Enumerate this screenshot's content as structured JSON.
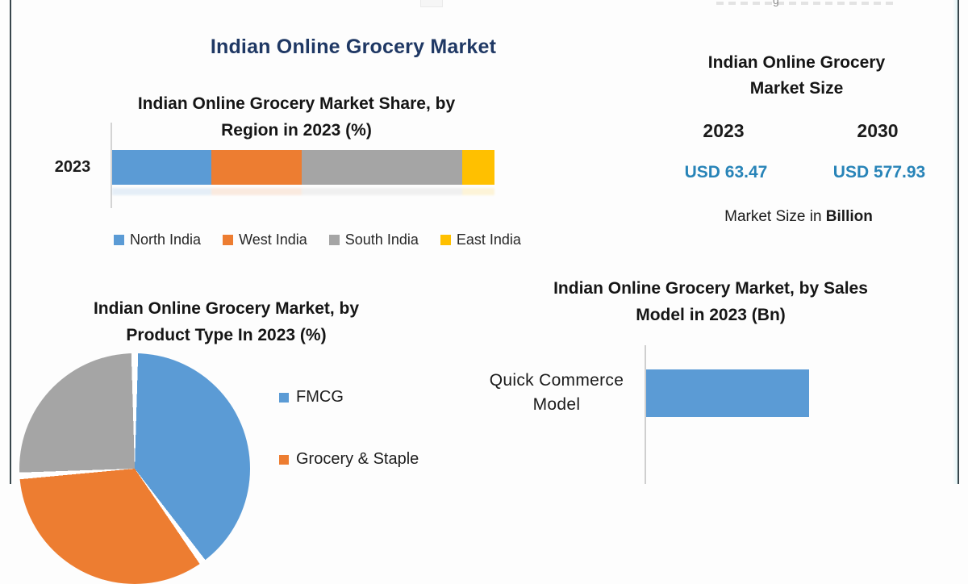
{
  "page": {
    "main_title": "Indian Online Grocery Market",
    "watermark_fragment": "g"
  },
  "ui": {
    "region_chart": {
      "title_line1": "Indian Online Grocery Market Share, by",
      "title_line2": "Region in 2023 (%)",
      "axis_category": "2023"
    },
    "market_panel": {
      "title_line1": "Indian Online Grocery",
      "title_line2": "Market Size",
      "year1": "2023",
      "year2": "2030",
      "value1": "USD 63.47",
      "value2": "USD 577.93",
      "caption_prefix": "Market Size in ",
      "caption_bold": "Billion"
    },
    "product_chart": {
      "title_line1": "Indian Online Grocery Market, by",
      "title_line2": "Product Type In 2023 (%)"
    },
    "sales_chart": {
      "title_line1": "Indian Online Grocery Market, by Sales",
      "title_line2": "Model in 2023 (Bn)",
      "category_line1": "Quick Commerce",
      "category_line2": "Model"
    }
  },
  "colors": {
    "navy_title": "#1F3864",
    "steel_blue": "#5B9BD5",
    "orange": "#ED7D31",
    "gray": "#A5A5A5",
    "yellow": "#FFC000",
    "teal_value": "#2884B8",
    "frame_border": "#39474D"
  },
  "chart_data": [
    {
      "id": "region_share",
      "type": "bar",
      "subtype": "stacked-horizontal",
      "title": "Indian Online Grocery Market Share, by Region in 2023 (%)",
      "categories": [
        "2023"
      ],
      "series": [
        {
          "name": "North India",
          "values": [
            26
          ],
          "color": "#5B9BD5"
        },
        {
          "name": "West India",
          "values": [
            23.5
          ],
          "color": "#ED7D31"
        },
        {
          "name": "South India",
          "values": [
            42
          ],
          "color": "#A5A5A5"
        },
        {
          "name": "East India",
          "values": [
            8.5
          ],
          "color": "#FFC000"
        }
      ],
      "unit": "%",
      "legend_position": "bottom",
      "grid": false,
      "data_labels": false,
      "note": "segment sizes estimated from bar proportions; no numeric labels shown"
    },
    {
      "id": "market_size",
      "type": "table",
      "title": "Indian Online Grocery Market Size",
      "columns": [
        "2023",
        "2030"
      ],
      "values": [
        "USD 63.47",
        "USD 577.93"
      ],
      "caption": "Market Size in Billion"
    },
    {
      "id": "product_type",
      "type": "pie",
      "title": "Indian Online Grocery Market, by Product Type In 2023 (%)",
      "slices": [
        {
          "label": "FMCG",
          "value": 40,
          "color": "#5B9BD5"
        },
        {
          "label": "Grocery & Staple",
          "value": 34,
          "color": "#ED7D31"
        },
        {
          "label": "",
          "value": 26,
          "color": "#A5A5A5",
          "note": "legend entry cut off by image edge"
        }
      ],
      "start_angle_deg": 0,
      "legend_position": "right",
      "note": "values estimated from slice angles; pie clipped by bottom of image"
    },
    {
      "id": "sales_model",
      "type": "bar",
      "subtype": "horizontal",
      "title": "Indian Online Grocery Market, by Sales Model in 2023 (Bn)",
      "categories": [
        "Quick Commerce Model"
      ],
      "values": [
        null
      ],
      "relative_length": 0.52,
      "color": "#5B9BD5",
      "grid": false,
      "note": "no axis scale or data label visible; bar length given as fraction of plot width"
    }
  ]
}
